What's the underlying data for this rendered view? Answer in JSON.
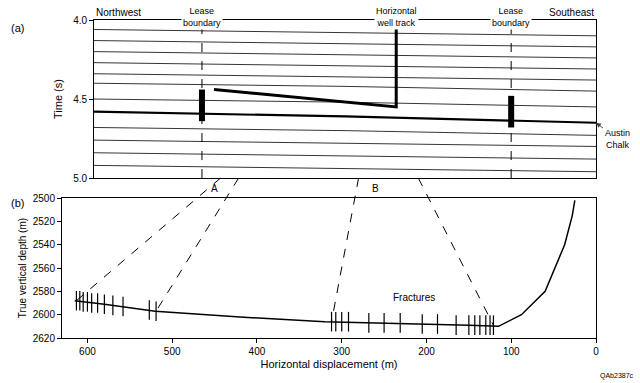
{
  "chart_data": [
    {
      "type": "seismic_section",
      "panel_label": "(a)",
      "color": "#000000",
      "left_label": "Northwest",
      "right_label": "Southeast",
      "ylabel": "Time (s)",
      "xlim": [
        0,
        100
      ],
      "tick_labels": "y",
      "ylim": [
        5,
        4
      ],
      "yticks": [
        {
          "value": 4,
          "label": "4.0"
        },
        4.5,
        {
          "value": 5,
          "label": "5.0"
        }
      ],
      "grid": false,
      "reflectors": [
        {
          "x": [
            0,
            50,
            100
          ],
          "y": [
            4.06,
            4.08,
            4.1
          ]
        },
        {
          "x": [
            0,
            50,
            100
          ],
          "y": [
            4.13,
            4.15,
            4.17
          ]
        },
        {
          "x": [
            0,
            50,
            100
          ],
          "y": [
            4.2,
            4.22,
            4.24
          ]
        },
        {
          "x": [
            0,
            50,
            100
          ],
          "y": [
            4.27,
            4.29,
            4.31
          ]
        },
        {
          "x": [
            0,
            50,
            100
          ],
          "y": [
            4.34,
            4.36,
            4.38
          ]
        },
        {
          "x": [
            0,
            50,
            100
          ],
          "y": [
            4.4,
            4.42,
            4.45
          ]
        },
        {
          "x": [
            0,
            50,
            100
          ],
          "y": [
            4.5,
            4.52,
            4.55
          ]
        },
        {
          "x": [
            0,
            50,
            100
          ],
          "y": [
            4.68,
            4.7,
            4.73
          ]
        },
        {
          "x": [
            0,
            50,
            100
          ],
          "y": [
            4.76,
            4.78,
            4.8
          ]
        },
        {
          "x": [
            0,
            50,
            100
          ],
          "y": [
            4.84,
            4.86,
            4.88
          ]
        },
        {
          "x": [
            0,
            50,
            100
          ],
          "y": [
            4.92,
            4.94,
            4.96
          ]
        }
      ],
      "austin_chalk": {
        "label": "Austin Chalk",
        "x": [
          0,
          50,
          100
        ],
        "y": [
          4.58,
          4.61,
          4.65
        ]
      },
      "lease_boundary_label": "Lease boundary",
      "lease_boundaries": [
        {
          "x": 21.5,
          "bar": [
            4.44,
            4.64
          ]
        },
        {
          "x": 83.1,
          "bar": [
            4.48,
            4.68
          ]
        }
      ],
      "well_track": {
        "label": "Horizontal well track",
        "x": [
          60.2,
          60.2,
          23.9
        ],
        "y": [
          4,
          4.55,
          4.44
        ]
      },
      "point_labels": [
        {
          "text": "A",
          "x": 24
        },
        {
          "text": "B",
          "x": 56
        }
      ]
    },
    {
      "type": "line",
      "panel_label": "(b)",
      "color": "#000000",
      "xlabel": "Horizontal displacement (m)",
      "ylabel": "True vertical depth (m)",
      "xlim": [
        630,
        0
      ],
      "xticks": [
        600,
        500,
        400,
        300,
        200,
        100,
        0
      ],
      "ylim": [
        2620,
        2500
      ],
      "yticks": [
        2500,
        2520,
        2540,
        2560,
        2580,
        2600,
        2620
      ],
      "grid": false,
      "x": [
        615,
        580,
        520,
        420,
        320,
        250,
        150,
        115,
        88,
        60,
        37,
        28,
        25
      ],
      "y": [
        2588,
        2591,
        2597,
        2602,
        2606,
        2607,
        2609,
        2610,
        2600,
        2580,
        2540,
        2515,
        2502
      ],
      "fractures": {
        "label": "Fractures",
        "label_x": 215,
        "label_y": 2585,
        "marker": "vertical_tick",
        "x": [
          613,
          609,
          605,
          600,
          595,
          588,
          580,
          570,
          558,
          527,
          519,
          312,
          307,
          300,
          292,
          268,
          250,
          231,
          205,
          187,
          165,
          150,
          143,
          137,
          130,
          125,
          121
        ],
        "y": [
          2588,
          2588,
          2589,
          2589,
          2590,
          2590,
          2591,
          2592,
          2593,
          2596,
          2597,
          2606,
          2606,
          2606,
          2606,
          2607,
          2607,
          2607,
          2608,
          2608,
          2609,
          2609,
          2609,
          2609,
          2609,
          2609,
          2609
        ]
      }
    }
  ],
  "connectors": [
    {
      "top_x": 25.2,
      "bottom_x": 613,
      "bottom_y": 2588
    },
    {
      "top_x": 28.8,
      "bottom_x": 519,
      "bottom_y": 2597
    },
    {
      "top_x": 52.7,
      "bottom_x": 312,
      "bottom_y": 2606
    },
    {
      "top_x": 64.6,
      "bottom_x": 121,
      "bottom_y": 2609
    }
  ],
  "figure_id": "QAb2387c"
}
